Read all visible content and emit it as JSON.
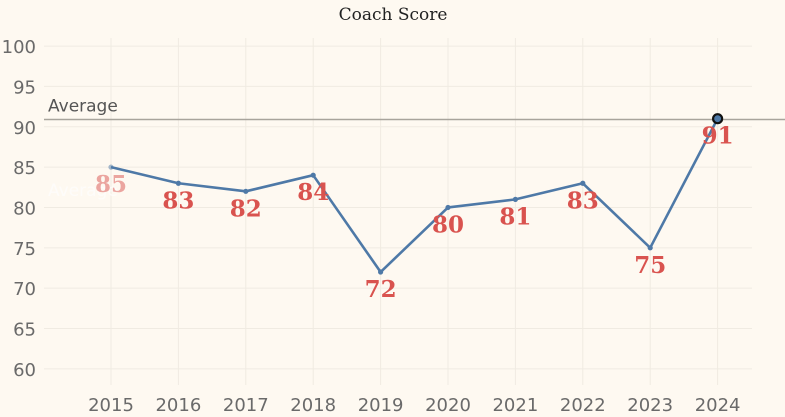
{
  "chart_data": {
    "type": "line",
    "title": "Coach Score",
    "xlabel": "",
    "ylabel": "",
    "categories": [
      "2015",
      "2016",
      "2017",
      "2018",
      "2019",
      "2020",
      "2021",
      "2022",
      "2023",
      "2024"
    ],
    "series": [
      {
        "values": [
          85,
          83,
          82,
          84,
          72,
          80,
          81,
          83,
          75,
          91
        ]
      }
    ],
    "data_labels": [
      "85",
      "83",
      "82",
      "84",
      "72",
      "80",
      "81",
      "83",
      "75",
      "91"
    ],
    "y_ticks": [
      "60",
      "65",
      "70",
      "75",
      "80",
      "85",
      "90",
      "95",
      "100"
    ],
    "ylim": [
      58,
      101
    ],
    "grid": true,
    "reference_line": {
      "label": "Average",
      "value": 90.9
    },
    "faded_label": "Average",
    "colors": {
      "line": "#4e79a7",
      "data_label": "#d9534f",
      "reference_line": "#a8a49c",
      "highlight_marker": "#111111",
      "background": "#fef9f1"
    }
  }
}
